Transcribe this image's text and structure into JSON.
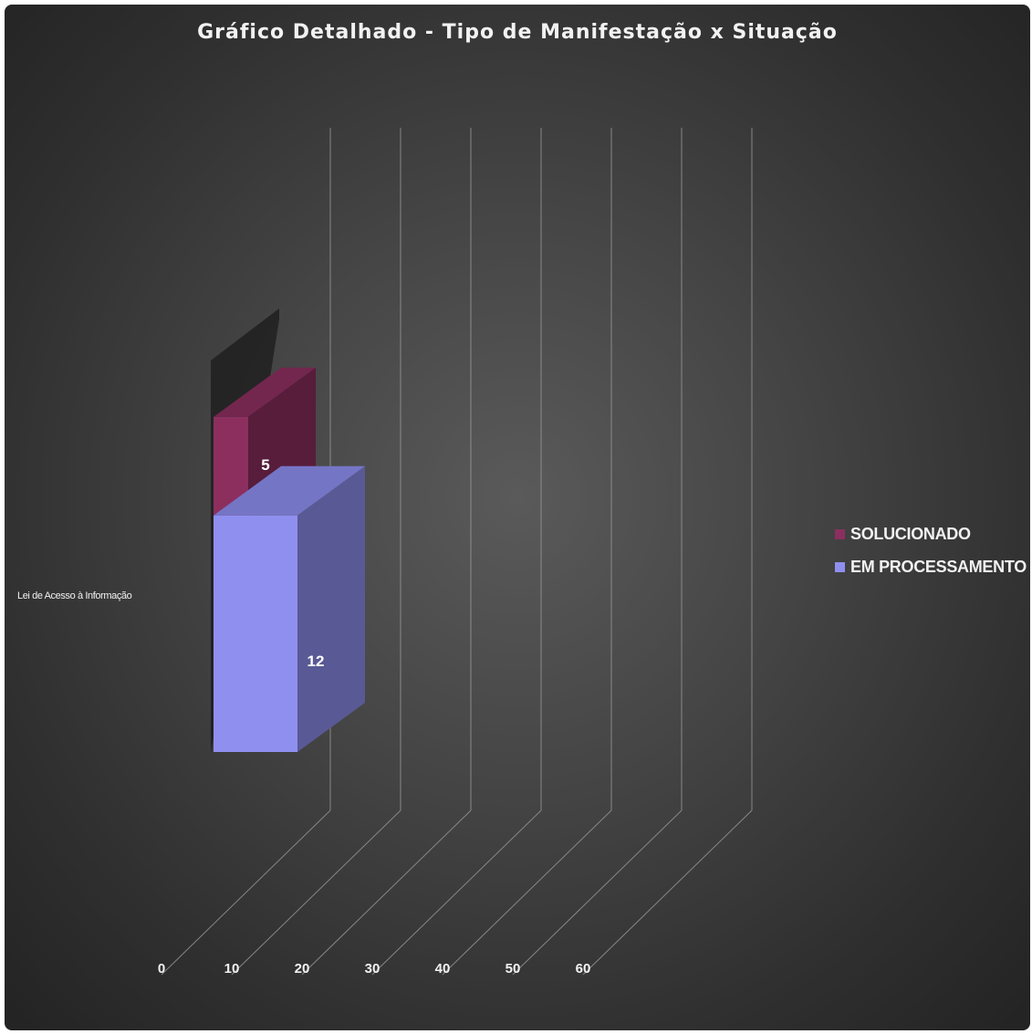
{
  "chart_data": {
    "type": "bar",
    "orientation": "horizontal",
    "stacked": true,
    "three_d": true,
    "title": "Gráfico Detalhado - Tipo de Manifestação x Situação",
    "categories": [
      "Lei de Acesso à Informação"
    ],
    "series": [
      {
        "name": "EM PROCESSAMENTO",
        "values": [
          12
        ],
        "color": "#8f8ff0"
      },
      {
        "name": "SOLUCIONADO",
        "values": [
          5
        ],
        "color": "#8c2f5f"
      }
    ],
    "x_ticks": [
      "0",
      "10",
      "20",
      "30",
      "40",
      "50",
      "60"
    ],
    "xlim": [
      0,
      60
    ],
    "grid": true,
    "legend_position": "right",
    "data_labels": true
  },
  "colors": {
    "background": "#3a3a3a",
    "text": "#f2f2f2",
    "gridline": "#9a9a9a"
  }
}
